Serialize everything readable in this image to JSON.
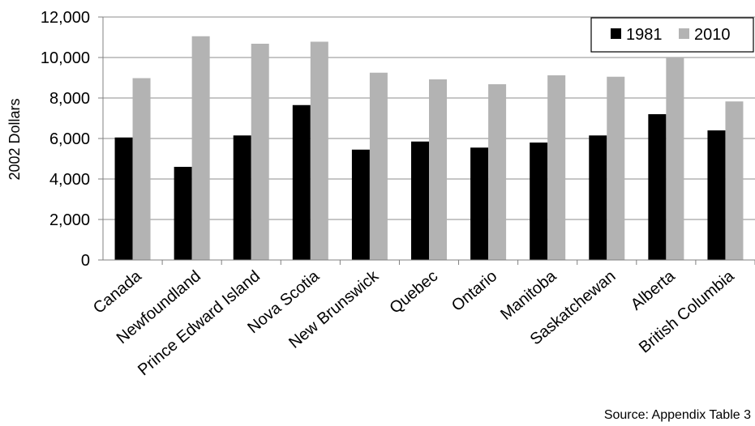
{
  "chart_data": {
    "type": "bar",
    "title": "",
    "xlabel": "",
    "ylabel": "2002 Dollars",
    "ylim": [
      0,
      12000
    ],
    "yticks": [
      0,
      2000,
      4000,
      6000,
      8000,
      10000,
      12000
    ],
    "ytick_labels": [
      "0",
      "2,000",
      "4,000",
      "6,000",
      "8,000",
      "10,000",
      "12,000"
    ],
    "grid": "horizontal",
    "legend_position": "top-right",
    "categories": [
      "Canada",
      "Newfoundland",
      "Prince Edward Island",
      "Nova Scotia",
      "New Brunswick",
      "Quebec",
      "Ontario",
      "Manitoba",
      "Saskatchewan",
      "Alberta",
      "British Columbia"
    ],
    "series": [
      {
        "name": "1981",
        "color": "#000000",
        "values": [
          6050,
          4600,
          6150,
          7650,
          5450,
          5850,
          5550,
          5800,
          6150,
          7200,
          6400
        ]
      },
      {
        "name": "2010",
        "color": "#b3b3b3",
        "values": [
          8980,
          11050,
          10680,
          10780,
          9250,
          8920,
          8680,
          9120,
          9050,
          9970,
          7830
        ]
      }
    ],
    "annotation": "Source: Appendix Table 3"
  }
}
